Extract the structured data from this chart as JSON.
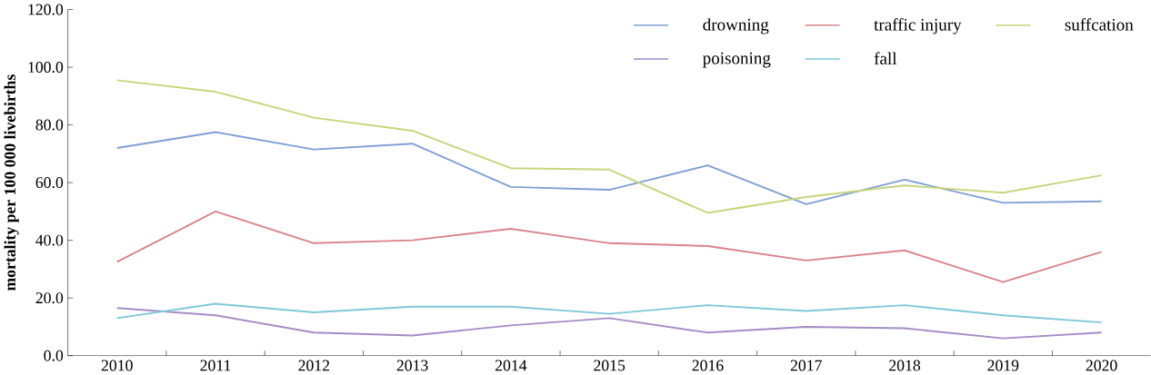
{
  "chart_data": {
    "type": "line",
    "ylabel": "mortality per 100 000 livebirths",
    "categories": [
      "2010",
      "2011",
      "2012",
      "2013",
      "2014",
      "2015",
      "2016",
      "2017",
      "2018",
      "2019",
      "2020"
    ],
    "series": [
      {
        "name": "drowning",
        "color": "#7f9fd6",
        "values": [
          72,
          77.5,
          71.5,
          73.5,
          58.5,
          57.5,
          66,
          52.5,
          61,
          53,
          53.5
        ]
      },
      {
        "name": "traffic injury",
        "color": "#d9848c",
        "values": [
          32.5,
          50,
          39,
          40,
          44,
          39,
          38,
          33,
          36.5,
          25.5,
          36
        ]
      },
      {
        "name": "suffcation",
        "color": "#c6d67c",
        "values": [
          95.5,
          91.5,
          82.5,
          78,
          65,
          64.5,
          49.5,
          55,
          59,
          56.5,
          62.5
        ]
      },
      {
        "name": "poisoning",
        "color": "#a48dc7",
        "values": [
          16.5,
          14,
          8,
          7,
          10.5,
          13,
          8,
          10,
          9.5,
          6,
          8
        ]
      },
      {
        "name": "fall",
        "color": "#7ec8d9",
        "values": [
          13,
          18,
          15,
          17,
          17,
          14.5,
          17.5,
          15.5,
          17.5,
          14,
          11.5
        ]
      }
    ],
    "ylim": [
      0,
      120
    ],
    "yticks": [
      {
        "value": 0,
        "label": "0.0"
      },
      {
        "value": 20,
        "label": "20.0"
      },
      {
        "value": 40,
        "label": "40.0"
      },
      {
        "value": 60,
        "label": "60.0"
      },
      {
        "value": 80,
        "label": "80.0"
      },
      {
        "value": 100,
        "label": "100.0"
      },
      {
        "value": 120,
        "label": "120.0"
      }
    ],
    "legend": "top right",
    "grid": false,
    "marker": "none",
    "line_style": "solid"
  }
}
